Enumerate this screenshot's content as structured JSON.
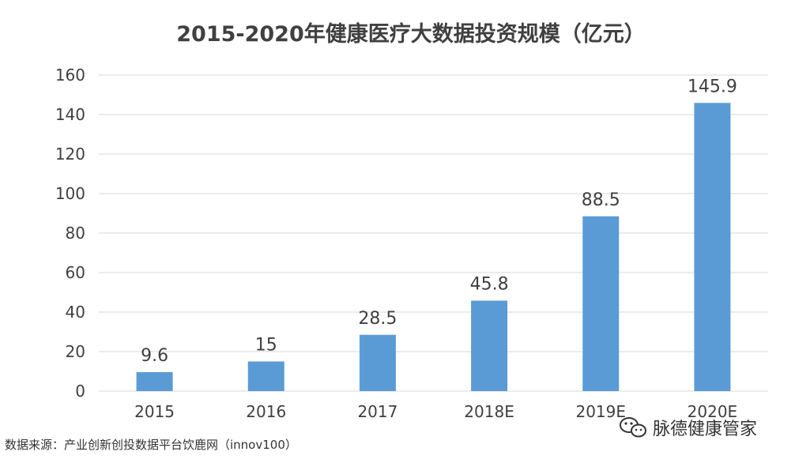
{
  "chart_data": {
    "type": "bar",
    "title": "2015-2020年健康医疗大数据投资规模（亿元）",
    "categories": [
      "2015",
      "2016",
      "2017",
      "2018E",
      "2019E",
      "2020E"
    ],
    "values": [
      9.6,
      15,
      28.5,
      45.8,
      88.5,
      145.9
    ],
    "data_labels": [
      "9.6",
      "15",
      "28.5",
      "45.8",
      "88.5",
      "145.9"
    ],
    "ylim": [
      0,
      160
    ],
    "yticks": [
      0,
      20,
      40,
      60,
      80,
      100,
      120,
      140,
      160
    ],
    "xlabel": "",
    "ylabel": "",
    "grid": true,
    "legend": "none",
    "bar_color": "#5b9bd5"
  },
  "source_note": "数据来源：产业创新创投数据平台饮鹿网（innov100）",
  "watermark": {
    "account_name": "脉德健康管家",
    "icon": "wechat-icon"
  }
}
